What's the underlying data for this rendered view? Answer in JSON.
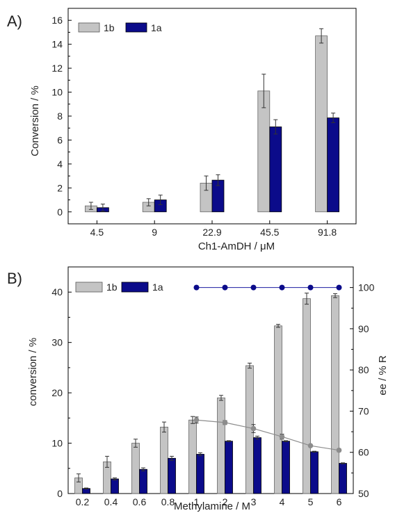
{
  "colors": {
    "series_1b": "#c4c4c4",
    "series_1a": "#0b0b8a",
    "ee_line": "#1a1aa0",
    "conv_line": "#8c8c8c",
    "axis": "#000000"
  },
  "chart_data": [
    {
      "panel_label": "A)",
      "type": "bar",
      "xlabel": "Ch1-AmDH / μM",
      "ylabel": "Conversion / %",
      "categories": [
        "4.5",
        "9",
        "22.9",
        "45.5",
        "91.8"
      ],
      "ylim": [
        -1,
        17
      ],
      "yticks": [
        "0",
        "2",
        "4",
        "6",
        "8",
        "10",
        "12",
        "14",
        "16"
      ],
      "legend": {
        "position": "top-left",
        "entries": [
          "1b",
          "1a"
        ]
      },
      "series": [
        {
          "name": "1b",
          "values": [
            0.5,
            0.8,
            2.4,
            10.1,
            14.7
          ],
          "errors": [
            0.3,
            0.3,
            0.6,
            1.4,
            0.6
          ]
        },
        {
          "name": "1a",
          "values": [
            0.35,
            1.0,
            2.65,
            7.1,
            7.85
          ],
          "errors": [
            0.3,
            0.4,
            0.45,
            0.6,
            0.4
          ]
        }
      ]
    },
    {
      "panel_label": "B)",
      "type": "bar",
      "xlabel": "Methylamine / M",
      "ylabel": "conversion / %",
      "y2label": "ee / % R",
      "categories": [
        "0.2",
        "0.4",
        "0.6",
        "0.8",
        "1",
        "2",
        "3",
        "4",
        "5",
        "6"
      ],
      "ylim": [
        0,
        45
      ],
      "yticks": [
        "0",
        "10",
        "20",
        "30",
        "40"
      ],
      "y2lim": [
        50,
        105
      ],
      "y2ticks": [
        "50",
        "60",
        "70",
        "80",
        "90",
        "100"
      ],
      "legend": {
        "position": "top-left",
        "entries": [
          "1b",
          "1a"
        ]
      },
      "series": [
        {
          "name": "1b",
          "values": [
            3.1,
            6.3,
            10.0,
            13.2,
            14.6,
            19.0,
            25.4,
            33.3,
            38.7,
            39.3
          ],
          "errors": [
            0.8,
            1.1,
            0.8,
            1.0,
            0.7,
            0.5,
            0.5,
            0.3,
            1.1,
            0.4
          ]
        },
        {
          "name": "1a",
          "values": [
            1.0,
            2.9,
            4.8,
            7.0,
            7.8,
            10.4,
            11.1,
            10.4,
            8.3,
            6.0
          ],
          "errors": [
            0.1,
            0.2,
            0.3,
            0.4,
            0.3,
            0.1,
            0.3,
            0.1,
            0.1,
            0.1
          ]
        }
      ],
      "ee_line": {
        "categories": [
          "1",
          "2",
          "3",
          "4",
          "5",
          "6"
        ],
        "values": [
          100,
          100,
          100,
          100,
          100,
          100
        ]
      },
      "conversion_trend": {
        "categories": [
          "1",
          "2",
          "3",
          "4",
          "5",
          "6"
        ],
        "values": [
          14.6,
          14.1,
          12.9,
          11.3,
          9.5,
          8.6
        ],
        "errors": [
          0.6,
          0.4,
          0.8,
          0.5,
          0.2,
          0.3
        ]
      }
    }
  ]
}
